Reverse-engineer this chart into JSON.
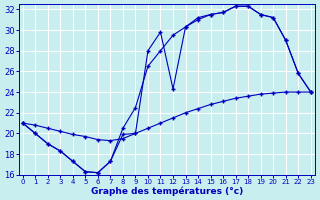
{
  "xlabel": "Graphe des températures (°c)",
  "xlim": [
    -0.3,
    23.3
  ],
  "ylim": [
    16,
    32.5
  ],
  "yticks": [
    16,
    18,
    20,
    22,
    24,
    26,
    28,
    30,
    32
  ],
  "xticks": [
    0,
    1,
    2,
    3,
    4,
    5,
    6,
    7,
    8,
    9,
    10,
    11,
    12,
    13,
    14,
    15,
    16,
    17,
    18,
    19,
    20,
    21,
    22,
    23
  ],
  "bg_color": "#c8eef0",
  "grid_color": "#ffffff",
  "line_color": "#0000bb",
  "line1_x": [
    0,
    1,
    2,
    3,
    4,
    5,
    6,
    7,
    8,
    9,
    10,
    11,
    12,
    13,
    14,
    15,
    16,
    17,
    18,
    19,
    20,
    21,
    22,
    23
  ],
  "line1_y": [
    21.0,
    20.0,
    19.0,
    18.3,
    17.3,
    16.3,
    16.2,
    17.3,
    19.9,
    20.0,
    28.0,
    29.8,
    24.3,
    30.3,
    31.2,
    31.5,
    31.7,
    32.3,
    32.3,
    31.5,
    31.2,
    29.0,
    25.8,
    24.0
  ],
  "line2_x": [
    0,
    1,
    2,
    3,
    4,
    5,
    6,
    7,
    8,
    9,
    10,
    11,
    12,
    13,
    14,
    15,
    16,
    17,
    18,
    19,
    20,
    21,
    22,
    23
  ],
  "line2_y": [
    21.0,
    20.0,
    19.0,
    18.3,
    17.3,
    16.3,
    16.2,
    17.3,
    20.5,
    22.5,
    26.5,
    28.0,
    29.5,
    30.3,
    31.0,
    31.5,
    31.7,
    32.3,
    32.3,
    31.5,
    31.2,
    29.0,
    25.8,
    24.0
  ],
  "line3_x": [
    0,
    1,
    2,
    3,
    4,
    5,
    6,
    7,
    8,
    9,
    10,
    11,
    12,
    13,
    14,
    15,
    16,
    17,
    18,
    19,
    20,
    21,
    22,
    23
  ],
  "line3_y": [
    21.0,
    20.8,
    20.5,
    20.2,
    19.9,
    19.7,
    19.4,
    19.3,
    19.5,
    20.0,
    20.5,
    21.0,
    21.5,
    22.0,
    22.4,
    22.8,
    23.1,
    23.4,
    23.6,
    23.8,
    23.9,
    24.0,
    24.0,
    24.0
  ]
}
